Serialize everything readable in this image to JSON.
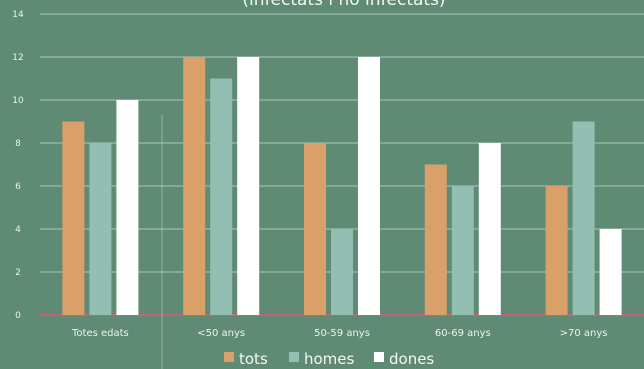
{
  "chart_data": {
    "type": "bar",
    "title": "(infectats i no infectats)",
    "categories": [
      "Totes edats",
      "<50 anys",
      "50-59 anys",
      "60-69 anys",
      ">70 anys"
    ],
    "series": [
      {
        "name": "tots",
        "color": "#d9a06a",
        "values": [
          9,
          12,
          8,
          7,
          6
        ]
      },
      {
        "name": "homes",
        "color": "#93bfb3",
        "values": [
          8,
          11,
          4,
          6,
          9
        ]
      },
      {
        "name": "dones",
        "color": "#ffffff",
        "values": [
          10,
          12,
          12,
          8,
          4
        ]
      }
    ],
    "ylim": [
      0,
      14
    ],
    "yticks": [
      0,
      2,
      4,
      6,
      8,
      10,
      12,
      14
    ],
    "grid": true,
    "legend_position": "bottom",
    "colors": {
      "background": "#5f8a73",
      "gridline": "#a9c4b6",
      "baseline": "#c7607f"
    }
  }
}
